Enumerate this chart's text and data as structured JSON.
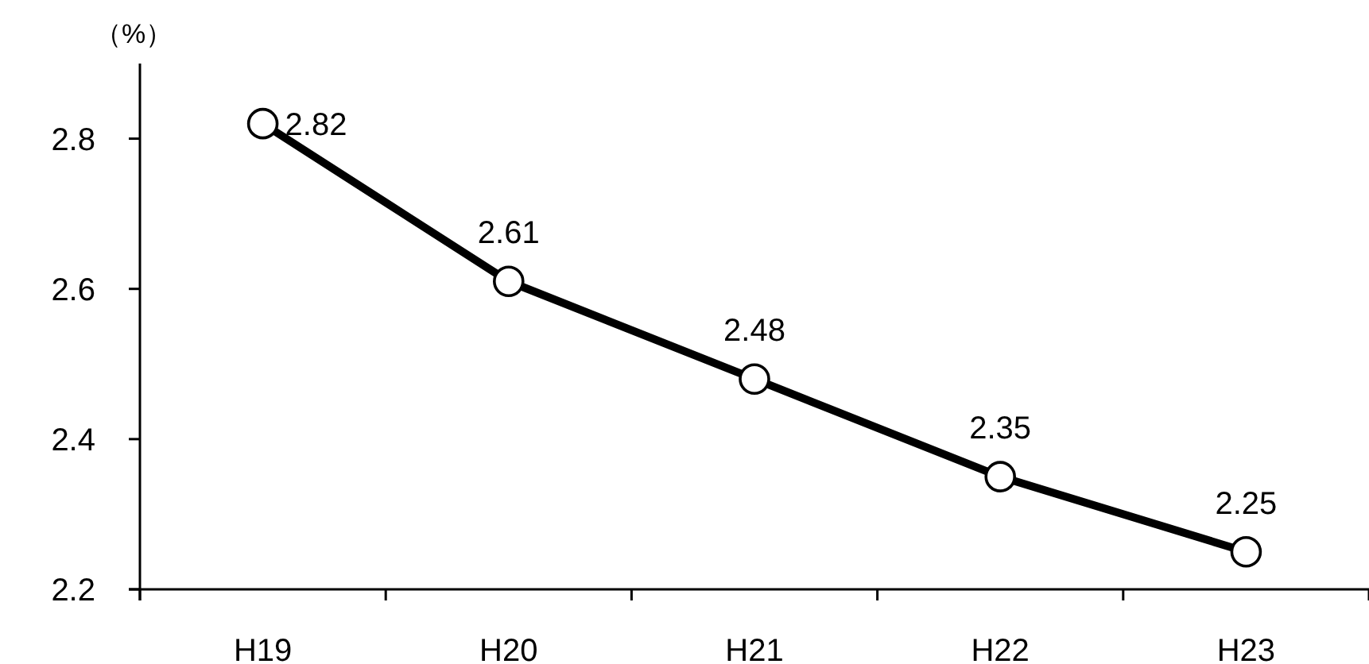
{
  "chart_data": {
    "type": "line",
    "ylabel": "（%）",
    "categories": [
      "H19",
      "H20",
      "H21",
      "H22",
      "H23"
    ],
    "series": [
      {
        "color": "#000000",
        "values": [
          2.82,
          2.61,
          2.48,
          2.35,
          2.25
        ]
      }
    ],
    "ylim": [
      2.2,
      2.9
    ],
    "yticks": [
      2.2,
      2.4,
      2.6,
      2.8
    ],
    "marker": "circle",
    "line_style": "solid",
    "data_labels": true,
    "grid": false
  }
}
